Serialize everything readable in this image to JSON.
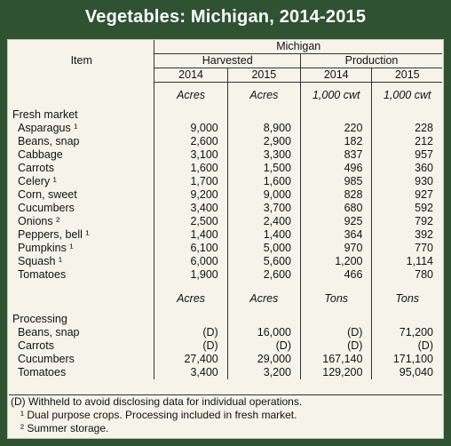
{
  "title": "Vegetables: Michigan, 2014-2015",
  "header": {
    "item": "Item",
    "region": "Michigan",
    "harvested": "Harvested",
    "production": "Production",
    "years": [
      "2014",
      "2015",
      "2014",
      "2015"
    ]
  },
  "fresh": {
    "units": [
      "Acres",
      "Acres",
      "1,000 cwt",
      "1,000 cwt"
    ],
    "label": "Fresh market",
    "rows": [
      {
        "item": "Asparagus ¹",
        "h14": "9,000",
        "h15": "8,900",
        "p14": "220",
        "p15": "228"
      },
      {
        "item": "Beans, snap",
        "h14": "2,600",
        "h15": "2,900",
        "p14": "182",
        "p15": "212"
      },
      {
        "item": "Cabbage",
        "h14": "3,100",
        "h15": "3,300",
        "p14": "837",
        "p15": "957"
      },
      {
        "item": "Carrots",
        "h14": "1,600",
        "h15": "1,500",
        "p14": "496",
        "p15": "360"
      },
      {
        "item": "Celery ¹",
        "h14": "1,700",
        "h15": "1,600",
        "p14": "985",
        "p15": "930"
      },
      {
        "item": "Corn, sweet",
        "h14": "9,200",
        "h15": "9,000",
        "p14": "828",
        "p15": "927"
      },
      {
        "item": "Cucumbers",
        "h14": "3,400",
        "h15": "3,700",
        "p14": "680",
        "p15": "592"
      },
      {
        "item": "Onions ²",
        "h14": "2,500",
        "h15": "2,400",
        "p14": "925",
        "p15": "792"
      },
      {
        "item": "Peppers, bell ¹",
        "h14": "1,400",
        "h15": "1,400",
        "p14": "364",
        "p15": "392"
      },
      {
        "item": "Pumpkins ¹",
        "h14": "6,100",
        "h15": "5,000",
        "p14": "970",
        "p15": "770"
      },
      {
        "item": "Squash ¹",
        "h14": "6,000",
        "h15": "5,600",
        "p14": "1,200",
        "p15": "1,114"
      },
      {
        "item": "Tomatoes",
        "h14": "1,900",
        "h15": "2,600",
        "p14": "466",
        "p15": "780"
      }
    ]
  },
  "processing": {
    "units": [
      "Acres",
      "Acres",
      "Tons",
      "Tons"
    ],
    "label": "Processing",
    "rows": [
      {
        "item": "Beans, snap",
        "h14": "(D)",
        "h15": "16,000",
        "p14": "(D)",
        "p15": "71,200"
      },
      {
        "item": "Carrots",
        "h14": "(D)",
        "h15": "(D)",
        "p14": "(D)",
        "p15": "(D)"
      },
      {
        "item": "Cucumbers",
        "h14": "27,400",
        "h15": "29,000",
        "p14": "167,140",
        "p15": "171,100"
      },
      {
        "item": "Tomatoes",
        "h14": "3,400",
        "h15": "3,200",
        "p14": "129,200",
        "p15": "95,040"
      }
    ]
  },
  "footnotes": [
    "(D) Withheld to avoid disclosing data for individual operations.",
    "¹ Dual purpose crops. Processing included in fresh market.",
    "² Summer storage."
  ]
}
